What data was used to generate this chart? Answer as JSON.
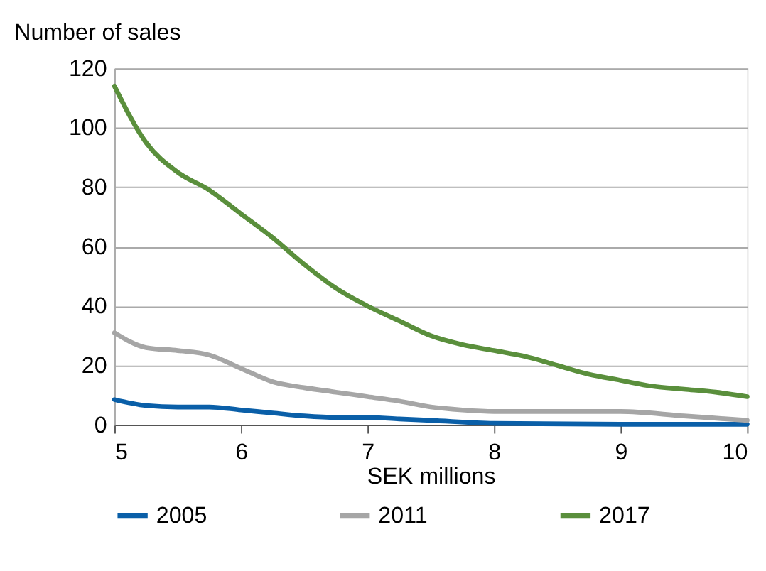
{
  "chart_data": {
    "type": "line",
    "ylabel": "Number of sales",
    "xlabel": "SEK millions",
    "xlim": [
      5,
      10
    ],
    "xticks": [
      5,
      6,
      7,
      8,
      9,
      10
    ],
    "ylim": [
      0,
      120
    ],
    "yticks": [
      0,
      20,
      40,
      60,
      80,
      100,
      120
    ],
    "grid": "y",
    "legend": "bottom",
    "marker": "none",
    "line_style": "solid",
    "series": [
      {
        "name": "2005",
        "color": "#0a5fa8",
        "x": [
          5,
          5.25,
          5.5,
          5.75,
          6,
          6.25,
          6.5,
          6.75,
          7,
          7.25,
          7.5,
          8,
          9,
          10
        ],
        "values": [
          8.5,
          6.5,
          6,
          6,
          5,
          4,
          3,
          2.5,
          2.5,
          2,
          1.5,
          0.5,
          0.2,
          0.2
        ]
      },
      {
        "name": "2011",
        "color": "#a6a6a6",
        "x": [
          5,
          5.25,
          5.5,
          5.75,
          6,
          6.25,
          6.5,
          6.75,
          7,
          7.25,
          7.5,
          7.75,
          8,
          8.5,
          9,
          9.5,
          10
        ],
        "values": [
          31,
          26,
          25,
          23.5,
          19,
          14.5,
          12.5,
          11,
          9.5,
          8,
          6,
          5,
          4.5,
          4.5,
          4.5,
          3,
          1.5
        ]
      },
      {
        "name": "2017",
        "color": "#5a8f3c",
        "x": [
          5,
          5.25,
          5.5,
          5.75,
          6,
          6.25,
          6.5,
          6.75,
          7,
          7.25,
          7.5,
          7.75,
          8,
          8.25,
          8.5,
          8.75,
          9,
          9.25,
          9.5,
          9.75,
          10
        ],
        "values": [
          114,
          95,
          85,
          79,
          71,
          63,
          54,
          46,
          40,
          35,
          30,
          27,
          25,
          23,
          20,
          17,
          15,
          13,
          12,
          11,
          9.5
        ]
      }
    ]
  }
}
